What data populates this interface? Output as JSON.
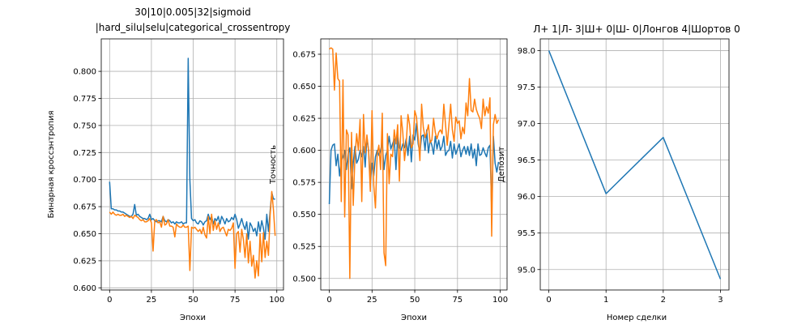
{
  "colors": {
    "series1": "#1f77b4",
    "series2": "#ff7f0e",
    "grid": "#b0b0b0"
  },
  "chart_data": [
    {
      "type": "line",
      "title": "30|10|0.005|32|sigmoid\n|hard_silu|selu|categorical_crossentropy",
      "xlabel": "Эпохи",
      "ylabel": "Бинарная кроссэнтропия",
      "xlim": [
        -5,
        104
      ],
      "ylim": [
        0.598,
        0.83
      ],
      "xticks": [
        0,
        25,
        50,
        75,
        100
      ],
      "yticks": [
        0.6,
        0.625,
        0.65,
        0.675,
        0.7,
        0.725,
        0.75,
        0.775,
        0.8
      ],
      "ytick_decimals": 3,
      "grid": true,
      "series": [
        {
          "values": [
            0.698,
            0.673,
            0.673,
            0.672,
            0.672,
            0.671,
            0.671,
            0.67,
            0.67,
            0.669,
            0.668,
            0.667,
            0.666,
            0.666,
            0.668,
            0.677,
            0.667,
            0.668,
            0.666,
            0.665,
            0.664,
            0.664,
            0.663,
            0.664,
            0.668,
            0.663,
            0.664,
            0.662,
            0.661,
            0.662,
            0.662,
            0.661,
            0.666,
            0.662,
            0.661,
            0.663,
            0.662,
            0.66,
            0.661,
            0.659,
            0.661,
            0.66,
            0.66,
            0.661,
            0.659,
            0.66,
            0.66,
            0.812,
            0.7,
            0.664,
            0.662,
            0.663,
            0.66,
            0.659,
            0.662,
            0.661,
            0.658,
            0.661,
            0.662,
            0.668,
            0.663,
            0.666,
            0.659,
            0.664,
            0.662,
            0.666,
            0.659,
            0.666,
            0.663,
            0.659,
            0.664,
            0.661,
            0.662,
            0.665,
            0.663,
            0.668,
            0.663,
            0.655,
            0.659,
            0.664,
            0.658,
            0.654,
            0.661,
            0.645,
            0.66,
            0.657,
            0.652,
            0.655,
            0.648,
            0.661,
            0.652,
            0.662,
            0.655,
            0.645,
            0.668,
            0.652,
            0.671,
            0.688,
            0.682,
            0.682
          ]
        },
        {
          "values": [
            0.67,
            0.668,
            0.67,
            0.668,
            0.667,
            0.668,
            0.667,
            0.667,
            0.668,
            0.666,
            0.667,
            0.666,
            0.665,
            0.666,
            0.664,
            0.667,
            0.666,
            0.665,
            0.663,
            0.662,
            0.663,
            0.661,
            0.661,
            0.662,
            0.664,
            0.66,
            0.634,
            0.662,
            0.663,
            0.66,
            0.661,
            0.656,
            0.666,
            0.658,
            0.659,
            0.663,
            0.657,
            0.657,
            0.656,
            0.647,
            0.659,
            0.657,
            0.656,
            0.656,
            0.658,
            0.656,
            0.656,
            0.657,
            0.616,
            0.656,
            0.655,
            0.656,
            0.654,
            0.652,
            0.654,
            0.65,
            0.656,
            0.649,
            0.646,
            0.666,
            0.65,
            0.668,
            0.653,
            0.662,
            0.654,
            0.66,
            0.652,
            0.655,
            0.656,
            0.652,
            0.648,
            0.654,
            0.653,
            0.655,
            0.66,
            0.618,
            0.65,
            0.652,
            0.633,
            0.654,
            0.645,
            0.628,
            0.65,
            0.623,
            0.643,
            0.62,
            0.63,
            0.609,
            0.625,
            0.611,
            0.65,
            0.624,
            0.651,
            0.628,
            0.643,
            0.63,
            0.667,
            0.689,
            0.672,
            0.648
          ]
        }
      ]
    },
    {
      "type": "line",
      "title": "",
      "xlabel": "Эпохи",
      "ylabel": "Точность",
      "xlim": [
        -5,
        104
      ],
      "ylim": [
        0.491,
        0.687
      ],
      "xticks": [
        0,
        25,
        50,
        75,
        100
      ],
      "yticks": [
        0.5,
        0.525,
        0.55,
        0.575,
        0.6,
        0.625,
        0.65,
        0.675
      ],
      "ytick_decimals": 3,
      "grid": true,
      "series": [
        {
          "values": [
            0.558,
            0.6,
            0.604,
            0.605,
            0.588,
            0.597,
            0.58,
            0.592,
            0.595,
            0.6,
            0.585,
            0.597,
            0.602,
            0.57,
            0.59,
            0.603,
            0.59,
            0.593,
            0.6,
            0.595,
            0.603,
            0.587,
            0.61,
            0.6,
            0.575,
            0.59,
            0.58,
            0.595,
            0.6,
            0.596,
            0.6,
            0.606,
            0.585,
            0.596,
            0.6,
            0.611,
            0.601,
            0.605,
            0.609,
            0.585,
            0.612,
            0.602,
            0.6,
            0.605,
            0.602,
            0.609,
            0.596,
            0.611,
            0.591,
            0.612,
            0.608,
            0.621,
            0.605,
            0.598,
            0.611,
            0.612,
            0.6,
            0.616,
            0.598,
            0.608,
            0.604,
            0.597,
            0.611,
            0.601,
            0.608,
            0.6,
            0.603,
            0.611,
            0.596,
            0.599,
            0.6,
            0.607,
            0.594,
            0.605,
            0.597,
            0.601,
            0.605,
            0.595,
            0.6,
            0.603,
            0.597,
            0.603,
            0.596,
            0.605,
            0.594,
            0.601,
            0.588,
            0.605,
            0.596,
            0.597,
            0.602,
            0.598,
            0.595,
            0.602,
            0.604,
            0.553,
            0.611,
            0.59,
            0.583,
            0.591
          ]
        },
        {
          "values": [
            0.679,
            0.68,
            0.679,
            0.647,
            0.676,
            0.656,
            0.654,
            0.56,
            0.655,
            0.548,
            0.616,
            0.612,
            0.5,
            0.614,
            0.557,
            0.595,
            0.613,
            0.6,
            0.624,
            0.56,
            0.628,
            0.598,
            0.612,
            0.599,
            0.568,
            0.631,
            0.573,
            0.555,
            0.597,
            0.604,
            0.585,
            0.629,
            0.52,
            0.51,
            0.613,
            0.574,
            0.597,
            0.595,
            0.616,
            0.605,
            0.62,
            0.576,
            0.627,
            0.614,
            0.592,
            0.605,
            0.628,
            0.62,
            0.602,
            0.605,
            0.631,
            0.626,
            0.61,
            0.592,
            0.636,
            0.618,
            0.61,
            0.614,
            0.62,
            0.606,
            0.608,
            0.625,
            0.614,
            0.609,
            0.614,
            0.616,
            0.613,
            0.636,
            0.62,
            0.604,
            0.62,
            0.636,
            0.616,
            0.607,
            0.626,
            0.621,
            0.623,
            0.609,
            0.618,
            0.613,
            0.637,
            0.627,
            0.656,
            0.631,
            0.63,
            0.64,
            0.632,
            0.628,
            0.625,
            0.617,
            0.64,
            0.627,
            0.634,
            0.629,
            0.641,
            0.533,
            0.62,
            0.628,
            0.621,
            0.624
          ]
        }
      ]
    },
    {
      "type": "line",
      "title": "Л+ 1|Л- 3|Ш+ 0|Ш- 0|Лонгов 4|Шортов 0",
      "xlabel": "Номер сделки",
      "ylabel": "Депозит",
      "xlim": [
        -0.15,
        3.15
      ],
      "ylim": [
        94.72,
        98.16
      ],
      "xticks": [
        0,
        1,
        2,
        3
      ],
      "yticks": [
        95.0,
        95.5,
        96.0,
        96.5,
        97.0,
        97.5,
        98.0
      ],
      "ytick_decimals": 1,
      "grid": true,
      "series": [
        {
          "x": [
            0,
            1,
            2,
            3
          ],
          "values": [
            98.0,
            96.04,
            96.81,
            94.87
          ]
        }
      ]
    }
  ]
}
